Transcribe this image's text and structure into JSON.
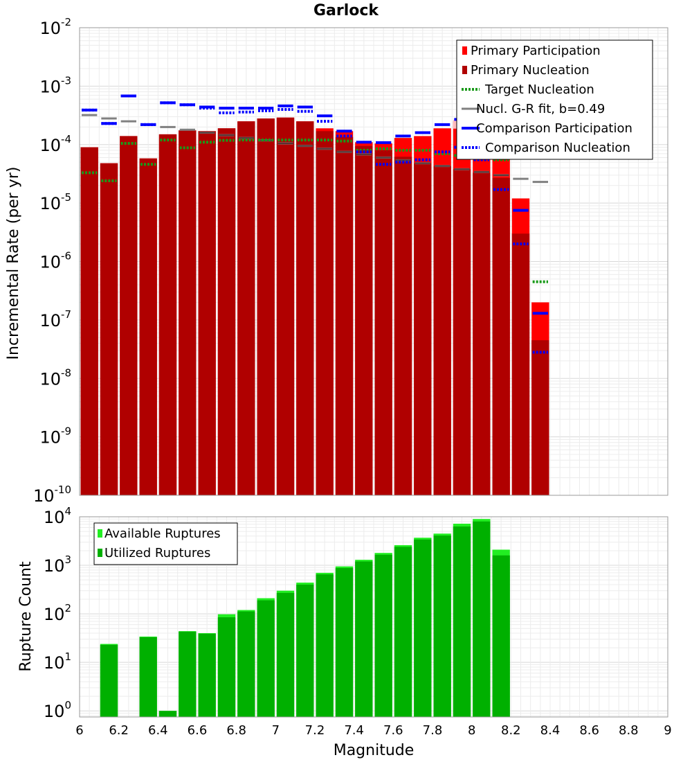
{
  "chart_data": [
    {
      "type": "bar",
      "title": "Garlock",
      "ylabel": "Incremental Rate (per yr)",
      "xlabel": "",
      "xlim": [
        6,
        9
      ],
      "ylim": [
        1e-10,
        0.01
      ],
      "yscale": "log",
      "grid": true,
      "legend_placement": "top-right",
      "y_tick_labels": [
        {
          "base": "10",
          "exp": "-10",
          "value": 1e-10
        },
        {
          "base": "10",
          "exp": "-9",
          "value": 1e-09
        },
        {
          "base": "10",
          "exp": "-8",
          "value": 1e-08
        },
        {
          "base": "10",
          "exp": "-7",
          "value": 1e-07
        },
        {
          "base": "10",
          "exp": "-6",
          "value": 1e-06
        },
        {
          "base": "10",
          "exp": "-5",
          "value": 1e-05
        },
        {
          "base": "10",
          "exp": "-4",
          "value": 0.0001
        },
        {
          "base": "10",
          "exp": "-3",
          "value": 0.001
        },
        {
          "base": "10",
          "exp": "-2",
          "value": 0.01
        }
      ],
      "x": [
        6.05,
        6.15,
        6.25,
        6.35,
        6.45,
        6.55,
        6.65,
        6.75,
        6.85,
        6.95,
        7.05,
        7.15,
        7.25,
        7.35,
        7.45,
        7.55,
        7.65,
        7.75,
        7.85,
        7.95,
        8.05,
        8.15,
        8.25,
        8.35
      ],
      "bar_width": 0.1,
      "series": [
        {
          "name": "Primary Participation",
          "color": "#ff0000",
          "style": "bar",
          "values": [
            9e-05,
            4.8e-05,
            0.00014,
            5.8e-05,
            0.00015,
            0.000175,
            0.00017,
            0.00019,
            0.00025,
            0.00028,
            0.00029,
            0.00025,
            0.00019,
            0.00017,
            0.00011,
            0.000105,
            0.00013,
            0.00014,
            0.00019,
            0.00025,
            0.0002,
            0.0001,
            1.2e-05,
            2e-07
          ]
        },
        {
          "name": "Primary Nucleation",
          "color": "#b00000",
          "style": "bar",
          "values": [
            9e-05,
            4.8e-05,
            0.00014,
            5.8e-05,
            0.00015,
            0.000175,
            0.00017,
            0.00019,
            0.00025,
            0.00028,
            0.00029,
            0.00025,
            0.00017,
            0.000135,
            9.5e-05,
            8e-05,
            6.2e-05,
            4.8e-05,
            4.3e-05,
            3.8e-05,
            3.3e-05,
            2.7e-05,
            3e-06,
            4.5e-08
          ]
        },
        {
          "name": "Target Nucleation",
          "color": "#1a9a1a",
          "style": "dotted",
          "values": [
            3.3e-05,
            2.4e-05,
            0.000105,
            4.6e-05,
            0.00012,
            8.8e-05,
            0.00011,
            0.000118,
            0.00012,
            0.00012,
            0.00012,
            0.00012,
            0.00012,
            0.000115,
            8e-05,
            8.5e-05,
            8e-05,
            8e-05,
            7e-05,
            6.5e-05,
            6e-05,
            5.5e-05,
            null,
            4.5e-07
          ]
        },
        {
          "name": "Nucl. G-R fit, b=0.49",
          "color": "#808080",
          "style": "solid",
          "values": [
            0.00032,
            0.00028,
            0.00025,
            0.00022,
            0.0002,
            0.00018,
            0.00016,
            0.000145,
            0.00013,
            0.000118,
            0.000105,
            9.5e-05,
            8.5e-05,
            7.5e-05,
            6.8e-05,
            6e-05,
            5.4e-05,
            4.8e-05,
            4.3e-05,
            3.8e-05,
            3.4e-05,
            3e-05,
            2.6e-05,
            2.3e-05
          ]
        },
        {
          "name": "Comparison Participation",
          "color": "#0000ff",
          "style": "solid",
          "values": [
            0.00039,
            0.00023,
            0.00068,
            0.00022,
            0.00052,
            0.00048,
            0.00044,
            0.00042,
            0.00042,
            0.00042,
            0.00046,
            0.00044,
            0.00031,
            0.00017,
            0.00011,
            0.000108,
            0.00014,
            0.00016,
            0.00022,
            0.00027,
            0.00021,
            0.0001,
            7.5e-06,
            1.3e-07
          ]
        },
        {
          "name": "Comparison Nucleation",
          "color": "#0000ff",
          "style": "dotted",
          "values": [
            0.00039,
            0.00023,
            0.00068,
            0.00022,
            0.00052,
            0.00048,
            0.00042,
            0.00035,
            0.00036,
            0.00038,
            0.0004,
            0.00037,
            0.00025,
            0.00014,
            7.5e-05,
            4.6e-05,
            5e-05,
            5.5e-05,
            7.5e-05,
            9e-05,
            5.5e-05,
            1.7e-05,
            2e-06,
            2.8e-08
          ]
        }
      ]
    },
    {
      "type": "bar",
      "title": "",
      "ylabel": "Rupture Count",
      "xlabel": "Magnitude",
      "xlim": [
        6,
        9
      ],
      "ylim": [
        0.75,
        10000
      ],
      "yscale": "log",
      "grid": true,
      "legend_placement": "top-left",
      "x_tick_labels": [
        "6",
        "6.2",
        "6.4",
        "6.6",
        "6.8",
        "7",
        "7.2",
        "7.4",
        "7.6",
        "7.8",
        "8",
        "8.2",
        "8.4",
        "8.6",
        "8.8",
        "9"
      ],
      "y_tick_labels": [
        {
          "base": "10",
          "exp": "0",
          "value": 1
        },
        {
          "base": "10",
          "exp": "1",
          "value": 10
        },
        {
          "base": "10",
          "exp": "2",
          "value": 100
        },
        {
          "base": "10",
          "exp": "3",
          "value": 1000
        },
        {
          "base": "10",
          "exp": "4",
          "value": 10000
        }
      ],
      "x": [
        6.05,
        6.15,
        6.25,
        6.35,
        6.45,
        6.55,
        6.65,
        6.75,
        6.85,
        6.95,
        7.05,
        7.15,
        7.25,
        7.35,
        7.45,
        7.55,
        7.65,
        7.75,
        7.85,
        7.95,
        8.05,
        8.15
      ],
      "bar_width": 0.1,
      "series": [
        {
          "name": "Available Ruptures",
          "color": "#22ee22",
          "values": [
            null,
            24,
            null,
            34,
            1,
            44,
            40,
            98,
            120,
            210,
            300,
            440,
            700,
            950,
            1300,
            1800,
            2600,
            3700,
            4500,
            7200,
            9000,
            2100
          ]
        },
        {
          "name": "Utilized Ruptures",
          "color": "#00b000",
          "values": [
            null,
            23,
            null,
            33,
            1,
            43,
            39,
            85,
            112,
            190,
            270,
            400,
            650,
            880,
            1200,
            1650,
            2400,
            3400,
            4100,
            6300,
            8000,
            1600
          ]
        }
      ]
    }
  ]
}
